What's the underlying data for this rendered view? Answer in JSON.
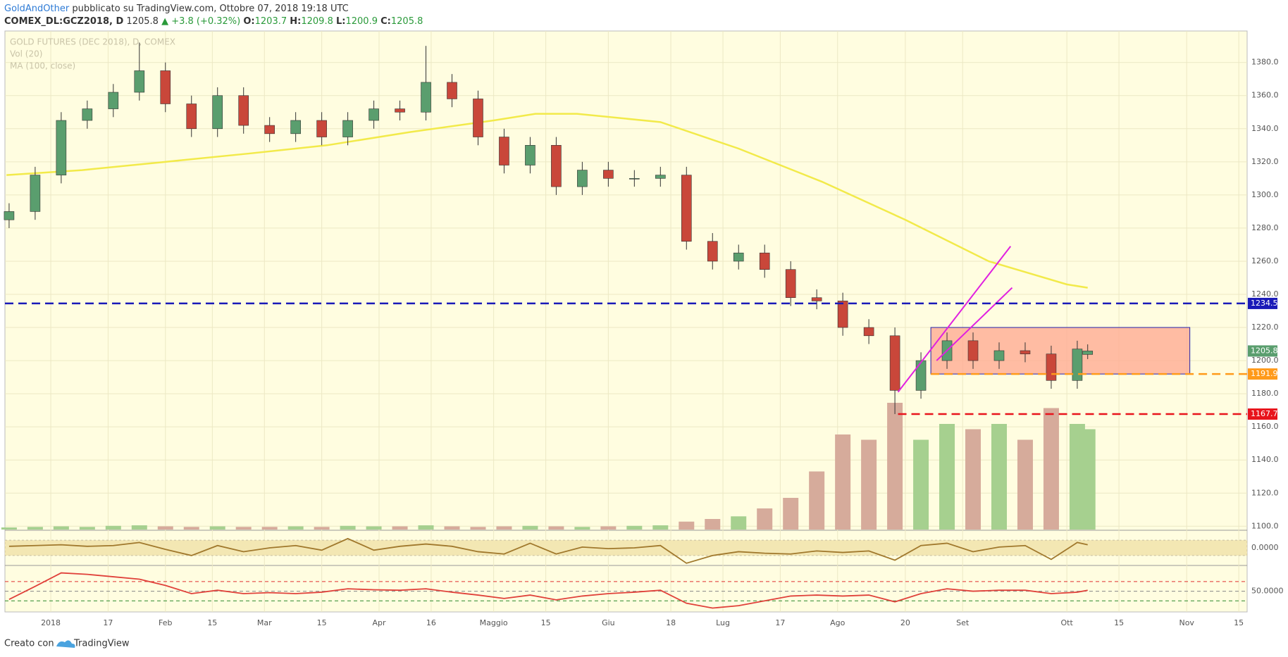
{
  "header": {
    "author": "GoldAndOther",
    "published": "pubblicato su TradingView.com, Ottobre 07, 2018 19:18 UTC",
    "symbol": "COMEX_DL:GCZ2018, D",
    "last": "1205.8",
    "change": "▲ +3.8 (+0.32%)",
    "open_label": "O:",
    "open": "1203.7",
    "high_label": "H:",
    "high": "1209.8",
    "low_label": "L:",
    "low": "1200.9",
    "close_label": "C:",
    "close": "1205.8"
  },
  "footer": {
    "created_with": "Creato con",
    "brand": "TradingView"
  },
  "chart_data": [
    {
      "type": "candlestick",
      "title": "GOLD FUTURES (DEC 2018), D, COMEX",
      "x": [
        -8,
        -3,
        2,
        7,
        12,
        17,
        22,
        27,
        32,
        37,
        42,
        47,
        52,
        57,
        62,
        67,
        72,
        77,
        82,
        87,
        92,
        97,
        102,
        107,
        112,
        117,
        122,
        127,
        132,
        137,
        142,
        147,
        152,
        157,
        162,
        167,
        172,
        177,
        182,
        187,
        192,
        197,
        199
      ],
      "open": [
        1285,
        1290,
        1312,
        1345,
        1352,
        1362,
        1375,
        1355,
        1340,
        1360,
        1342,
        1337,
        1345,
        1335,
        1345,
        1352,
        1350,
        1368,
        1358,
        1335,
        1318,
        1330,
        1305,
        1315,
        1310,
        1310,
        1312,
        1272,
        1260,
        1265,
        1255,
        1238,
        1236,
        1220,
        1215,
        1182,
        1200,
        1212,
        1200,
        1206,
        1204,
        1188,
        1203.7
      ],
      "high": [
        1295,
        1317,
        1350,
        1357,
        1367,
        1392,
        1380,
        1360,
        1365,
        1365,
        1347,
        1350,
        1350,
        1350,
        1357,
        1357,
        1390,
        1373,
        1363,
        1340,
        1335,
        1335,
        1320,
        1320,
        1315,
        1317,
        1317,
        1277,
        1270,
        1270,
        1260,
        1243,
        1241,
        1225,
        1220,
        1205,
        1217,
        1217,
        1211,
        1211,
        1209,
        1212,
        1209.8
      ],
      "low": [
        1280,
        1285,
        1307,
        1340,
        1347,
        1357,
        1350,
        1335,
        1335,
        1337,
        1332,
        1332,
        1330,
        1330,
        1340,
        1345,
        1345,
        1353,
        1330,
        1313,
        1313,
        1300,
        1300,
        1305,
        1305,
        1305,
        1267,
        1255,
        1255,
        1250,
        1233,
        1231,
        1215,
        1210,
        1167.7,
        1177,
        1195,
        1195,
        1195,
        1199,
        1183,
        1183,
        1200.9
      ],
      "close": [
        1290,
        1312,
        1345,
        1352,
        1362,
        1375,
        1355,
        1340,
        1360,
        1342,
        1337,
        1345,
        1335,
        1345,
        1352,
        1350,
        1368,
        1358,
        1335,
        1318,
        1330,
        1305,
        1315,
        1310,
        1310,
        1312,
        1272,
        1260,
        1265,
        1255,
        1238,
        1236,
        1220,
        1215,
        1182,
        1200,
        1212,
        1200,
        1206,
        1204,
        1188,
        1207,
        1205.8
      ],
      "up_color": "#5a9e6e",
      "down_color": "#c9473a",
      "xlim": [
        -8.8,
        229.6
      ],
      "xticks": [
        {
          "value": 0,
          "label": "2018"
        },
        {
          "value": 11,
          "label": "17"
        },
        {
          "value": 22,
          "label": "Feb"
        },
        {
          "value": 31,
          "label": "15"
        },
        {
          "value": 41,
          "label": "Mar"
        },
        {
          "value": 52,
          "label": "15"
        },
        {
          "value": 63,
          "label": "Apr"
        },
        {
          "value": 73,
          "label": "16"
        },
        {
          "value": 85,
          "label": "Maggio"
        },
        {
          "value": 95,
          "label": "15"
        },
        {
          "value": 107,
          "label": "Giu"
        },
        {
          "value": 119,
          "label": "18"
        },
        {
          "value": 129,
          "label": "Lug"
        },
        {
          "value": 140,
          "label": "17"
        },
        {
          "value": 151,
          "label": "Ago"
        },
        {
          "value": 164,
          "label": "20"
        },
        {
          "value": 175,
          "label": "Set"
        },
        {
          "value": 195,
          "label": "Ott"
        },
        {
          "value": 205,
          "label": "15"
        },
        {
          "value": 218,
          "label": "Nov"
        },
        {
          "value": 228,
          "label": "15"
        }
      ],
      "ylim": [
        1098,
        1399
      ],
      "yticks": [
        {
          "value": 1100,
          "label": "1100.0"
        },
        {
          "value": 1120,
          "label": "1120.0"
        },
        {
          "value": 1140,
          "label": "1140.0"
        },
        {
          "value": 1160,
          "label": "1160.0"
        },
        {
          "value": 1180,
          "label": "1180.0"
        },
        {
          "value": 1200,
          "label": "1200.0"
        },
        {
          "value": 1220,
          "label": "1220.0"
        },
        {
          "value": 1240,
          "label": "1240.0"
        },
        {
          "value": 1260,
          "label": "1260.0"
        },
        {
          "value": 1280,
          "label": "1280.0"
        },
        {
          "value": 1300,
          "label": "1300.0"
        },
        {
          "value": 1320,
          "label": "1320.0"
        },
        {
          "value": 1340,
          "label": "1340.0"
        },
        {
          "value": 1360,
          "label": "1360.0"
        },
        {
          "value": 1380,
          "label": "1380.0"
        }
      ],
      "grid": true,
      "volume": {
        "name": "Vol (20)",
        "up_color": "#a6d08f",
        "down_color": "#d6ab9b",
        "values": [
          4,
          5,
          6,
          5,
          7,
          8,
          6,
          5,
          6,
          5,
          5,
          6,
          5,
          7,
          6,
          6,
          8,
          6,
          5,
          6,
          7,
          6,
          5,
          6,
          7,
          8,
          15,
          20,
          25,
          40,
          60,
          110,
          180,
          170,
          240,
          170,
          200,
          190,
          200,
          170,
          230,
          200,
          190
        ]
      },
      "moving_average": {
        "name": "MA (100, close)",
        "color": "#f2ea4a",
        "x": [
          -8.5,
          6,
          22,
          38,
          53,
          69,
          85,
          93,
          101,
          117,
          132,
          148,
          164,
          180,
          195,
          199
        ],
        "values": [
          1312,
          1315,
          1320,
          1325,
          1330,
          1338,
          1345,
          1349,
          1349,
          1344,
          1328,
          1308,
          1285,
          1260,
          1246,
          1244
        ]
      },
      "levels": [
        {
          "value": 1234.5,
          "color": "#1a1ab8",
          "from": -8.8
        },
        {
          "value": 1191.9,
          "color": "#ff9a1a",
          "from": 168.9
        },
        {
          "value": 1167.7,
          "color": "#e8141c",
          "from": 162.6
        }
      ],
      "box": {
        "x": [
          168.9,
          218.6
        ],
        "y": [
          1191.9,
          1220
        ],
        "fill": "#ffab94",
        "stroke": "#2222aa"
      },
      "trendlines": [
        {
          "x": [
            162.6,
            184.2
          ],
          "y": [
            1181,
            1269
          ],
          "color": "#e020e0"
        },
        {
          "x": [
            170,
            184.5
          ],
          "y": [
            1200,
            1244
          ],
          "color": "#e020e0"
        }
      ]
    },
    {
      "type": "line",
      "color": "#a0782c",
      "band": [
        -1,
        1
      ],
      "values": [
        0.2,
        0.3,
        0.4,
        0.2,
        0.3,
        0.7,
        -0.2,
        -1,
        0.3,
        -0.5,
        0.0,
        0.3,
        -0.3,
        1.2,
        -0.3,
        0.2,
        0.5,
        0.2,
        -0.5,
        -0.8,
        0.6,
        -0.8,
        0.1,
        -0.1,
        0.0,
        0.3,
        -2.0,
        -1.0,
        -0.5,
        -0.7,
        -0.8,
        -0.4,
        -0.6,
        -0.4,
        -1.6,
        0.3,
        0.6,
        -0.5,
        0.1,
        0.3,
        -1.5,
        0.7,
        0.4
      ],
      "ylim": [
        -2.2,
        2.2
      ],
      "yticks": [
        {
          "value": 0,
          "label": "0.0000"
        }
      ]
    },
    {
      "type": "line",
      "color": "#e0413a",
      "values": [
        33,
        60,
        88,
        85,
        80,
        75,
        62,
        45,
        52,
        45,
        47,
        45,
        48,
        55,
        53,
        52,
        55,
        48,
        42,
        35,
        42,
        32,
        40,
        45,
        48,
        52,
        25,
        15,
        20,
        30,
        40,
        42,
        40,
        42,
        28,
        45,
        55,
        50,
        52,
        52,
        45,
        48,
        52
      ],
      "ylim": [
        7,
        102
      ],
      "yticks": [
        {
          "value": 50,
          "label": "50.0000"
        }
      ],
      "levels": [
        {
          "value": 70,
          "color": "#e03030"
        },
        {
          "value": 50,
          "color": "#888888"
        },
        {
          "value": 30,
          "color": "#2a8a2a"
        }
      ]
    }
  ]
}
